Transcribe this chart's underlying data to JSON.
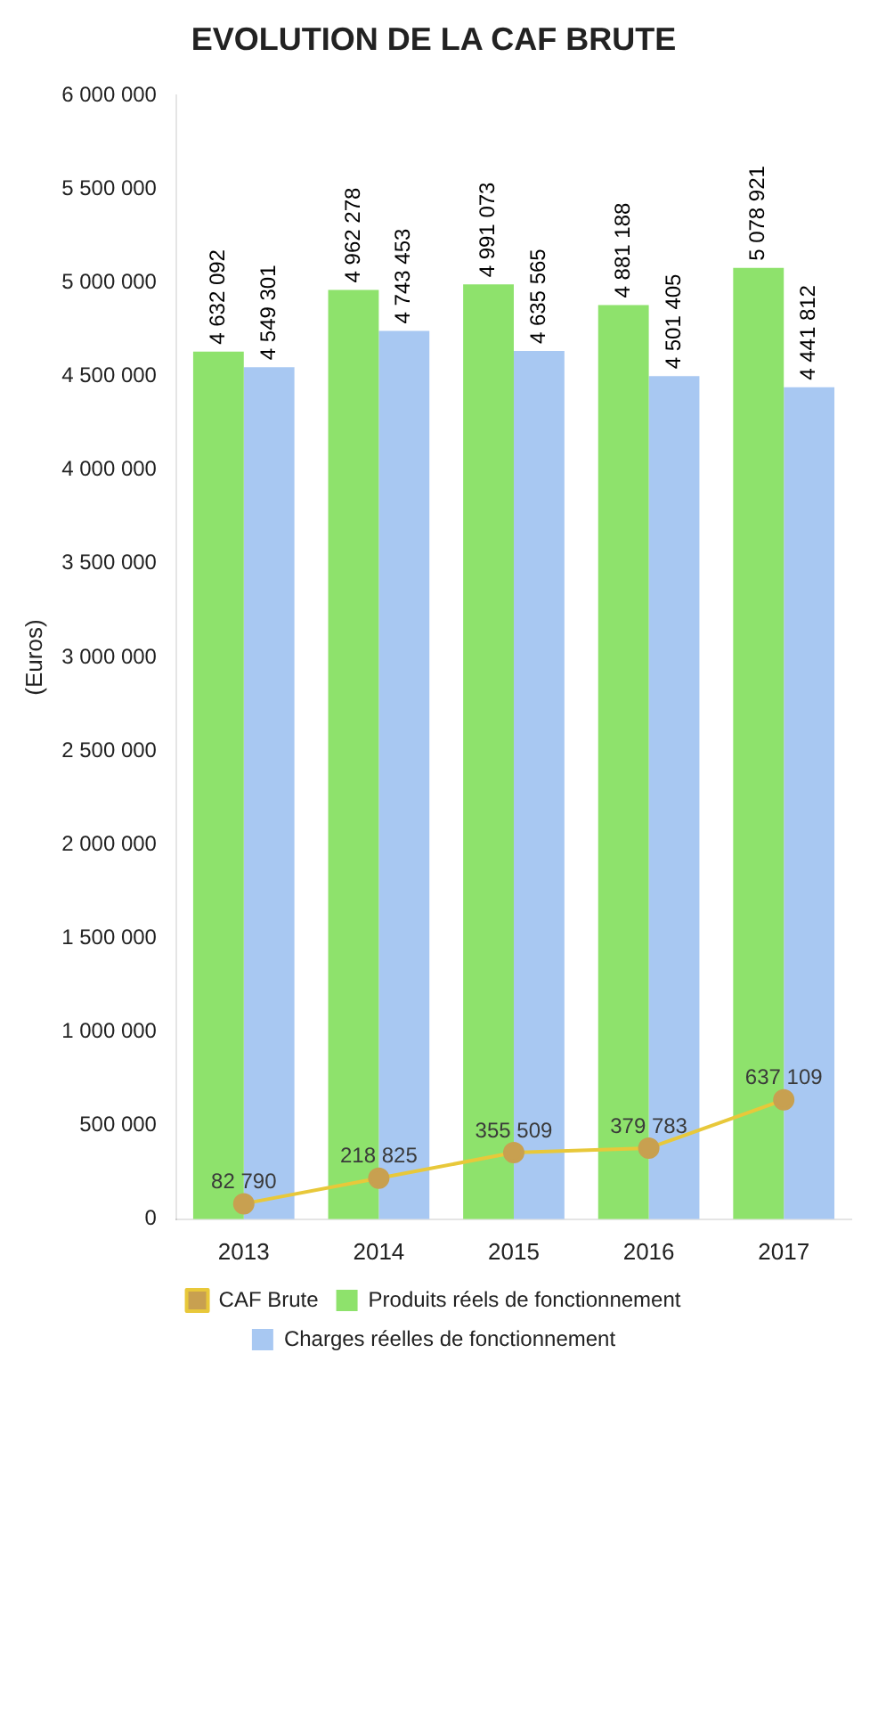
{
  "chart_data": {
    "type": "bar",
    "title": "EVOLUTION DE LA CAF BRUTE",
    "ylabel": "(Euros)",
    "categories": [
      "2013",
      "2014",
      "2015",
      "2016",
      "2017"
    ],
    "series": [
      {
        "name": "Produits réels de fonctionnement",
        "color": "#8ee26c",
        "values": [
          4632092,
          4962278,
          4991073,
          4881188,
          5078921
        ]
      },
      {
        "name": "Charges réelles de fonctionnement",
        "color": "#a8c8f2",
        "values": [
          4549301,
          4743453,
          4635565,
          4501405,
          4441812
        ]
      },
      {
        "name": "CAF Brute",
        "type": "line",
        "color": "#e8c83a",
        "values": [
          82790,
          218825,
          355509,
          379783,
          637109
        ]
      }
    ],
    "ylim": [
      0,
      6000000
    ],
    "yticks": [
      {
        "value": 0,
        "label": "0"
      },
      {
        "value": 500000,
        "label": "500 000"
      },
      {
        "value": 1000000,
        "label": "1 000 000"
      },
      {
        "value": 1500000,
        "label": "1 500 000"
      },
      {
        "value": 2000000,
        "label": "2 000 000"
      },
      {
        "value": 2500000,
        "label": "2 500 000"
      },
      {
        "value": 3000000,
        "label": "3 000 000"
      },
      {
        "value": 3500000,
        "label": "3 500 000"
      },
      {
        "value": 4000000,
        "label": "4 000 000"
      },
      {
        "value": 4500000,
        "label": "4 500 000"
      },
      {
        "value": 5000000,
        "label": "5 000 000"
      },
      {
        "value": 5500000,
        "label": "5 500 000"
      },
      {
        "value": 6000000,
        "label": "6 000 000"
      }
    ],
    "grid": false,
    "legend": "bottom",
    "marker": "circle",
    "line_style": "solid",
    "data_labels": true
  }
}
